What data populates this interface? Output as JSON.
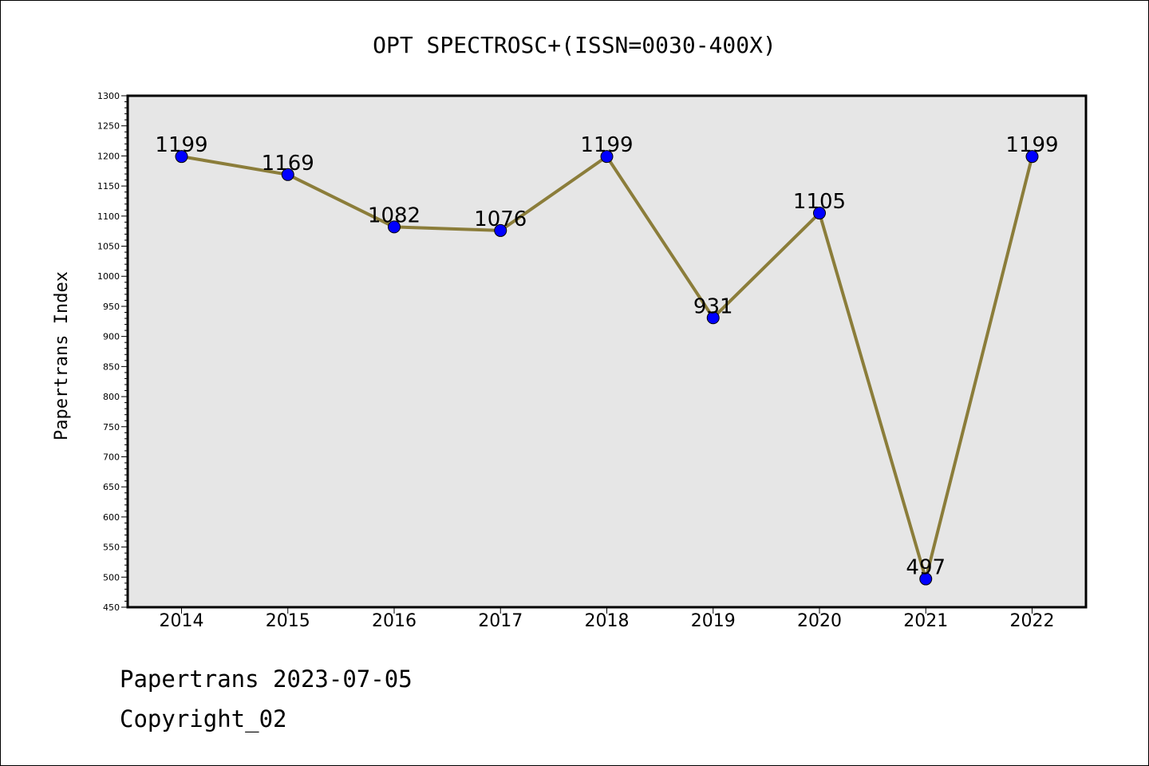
{
  "chart_data": {
    "type": "line",
    "title": "OPT SPECTROSC+(ISSN=0030-400X)",
    "xlabel": "",
    "ylabel": "Papertrans Index",
    "categories": [
      "2014",
      "2015",
      "2016",
      "2017",
      "2018",
      "2019",
      "2020",
      "2021",
      "2022"
    ],
    "series": [
      {
        "values": [
          1199,
          1169,
          1082,
          1076,
          1199,
          931,
          1105,
          497,
          1199
        ]
      }
    ],
    "ylim": [
      450,
      1300
    ],
    "yticks": [
      450,
      500,
      550,
      600,
      650,
      700,
      750,
      800,
      850,
      900,
      950,
      1000,
      1050,
      1100,
      1150,
      1200,
      1250,
      1300
    ],
    "grid": false,
    "legend": "none",
    "colors": {
      "line": "#8b7d3a",
      "marker": "#0000ff",
      "plot_background": "#e6e6e6",
      "frame": "#000000"
    }
  },
  "footer": {
    "line1": "Papertrans 2023-07-05",
    "line2": "Copyright_02"
  }
}
